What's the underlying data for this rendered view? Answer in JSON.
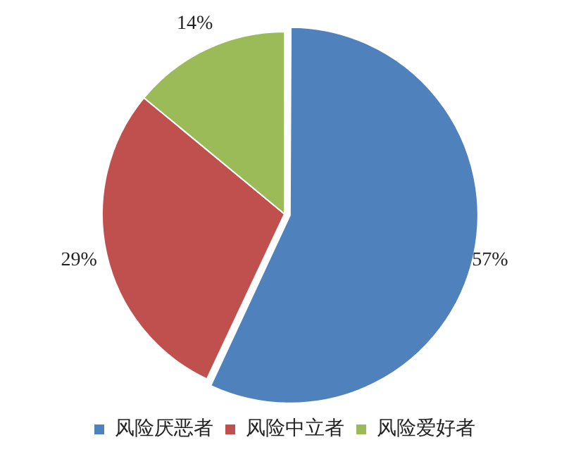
{
  "chart_data": {
    "type": "pie",
    "categories": [
      "风险厌恶者",
      "风险中立者",
      "风险爱好者"
    ],
    "values": [
      57,
      29,
      14
    ],
    "colors": [
      "#4f81bd",
      "#c0504d",
      "#9bbb59"
    ],
    "value_labels": [
      "57%",
      "29%",
      "14%"
    ],
    "legend": "bottom"
  }
}
